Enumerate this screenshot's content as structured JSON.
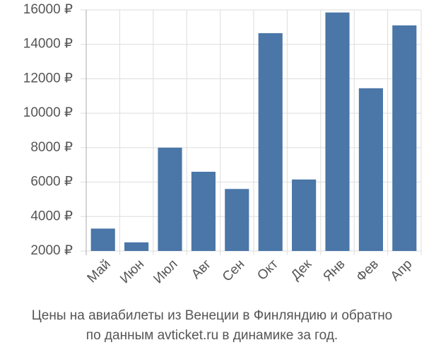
{
  "chart_data": {
    "type": "bar",
    "title": "Цены на авиабилеты из Венеции в Финляндию и обратно",
    "subtitle": "по данным avticket.ru в динамике за год.",
    "categories": [
      "Май",
      "Июн",
      "Июл",
      "Авг",
      "Сен",
      "Окт",
      "Дек",
      "Янв",
      "Фев",
      "Апр"
    ],
    "values": [
      3300,
      2500,
      8000,
      6600,
      5600,
      14650,
      6150,
      15850,
      11450,
      15100
    ],
    "color": "#4a76a8",
    "ylim": [
      2000,
      16000
    ],
    "yticks": [
      {
        "value": 2000,
        "label": "2000 ₽"
      },
      {
        "value": 4000,
        "label": "4000 ₽"
      },
      {
        "value": 6000,
        "label": "6000 ₽"
      },
      {
        "value": 8000,
        "label": "8000 ₽"
      },
      {
        "value": 10000,
        "label": "10000 ₽"
      },
      {
        "value": 12000,
        "label": "12000 ₽"
      },
      {
        "value": 14000,
        "label": "14000 ₽"
      },
      {
        "value": 16000,
        "label": "16000 ₽"
      }
    ],
    "grid": true
  }
}
